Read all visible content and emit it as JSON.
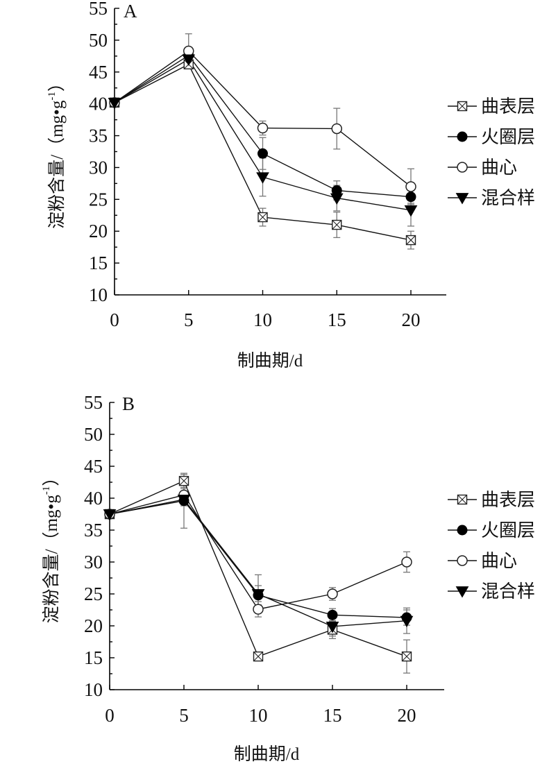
{
  "chart_data": [
    {
      "type": "line",
      "panel_label": "A",
      "xlabel": "制曲期/d",
      "ylabel_main": "淀粉含量/（mg",
      "ylabel_g": "g",
      "ylabel_exp": "-1",
      "ylabel_close": "）",
      "x": [
        0,
        5,
        10,
        15,
        20
      ],
      "xticks": [
        "0",
        "5",
        "10",
        "15",
        "20"
      ],
      "ylim": [
        10,
        55
      ],
      "yticks": [
        "10",
        "15",
        "20",
        "25",
        "30",
        "35",
        "40",
        "45",
        "50",
        "55"
      ],
      "legend_position": "right",
      "series": [
        {
          "name": "曲表层",
          "marker": "square-x",
          "values": [
            40.2,
            46.2,
            22.2,
            21.0,
            18.6
          ],
          "errors": [
            0.4,
            0.6,
            1.4,
            2.0,
            1.4
          ]
        },
        {
          "name": "火圈层",
          "marker": "filled-circle",
          "values": [
            40.2,
            47.6,
            32.2,
            26.4,
            25.4
          ],
          "errors": [
            0.3,
            0.8,
            2.5,
            1.5,
            1.0
          ]
        },
        {
          "name": "曲心",
          "marker": "open-circle",
          "values": [
            40.2,
            48.3,
            36.2,
            36.1,
            27.0
          ],
          "errors": [
            0.3,
            2.7,
            1.1,
            3.2,
            2.8
          ]
        },
        {
          "name": "混合样",
          "marker": "filled-triangle",
          "values": [
            40.2,
            47.0,
            28.5,
            25.2,
            23.3
          ],
          "errors": [
            0.3,
            1.0,
            3.0,
            2.0,
            2.5
          ]
        }
      ]
    },
    {
      "type": "line",
      "panel_label": "B",
      "xlabel": "制曲期/d",
      "ylabel_main": "淀粉含量/（mg",
      "ylabel_g": "g",
      "ylabel_exp": "-1",
      "ylabel_close": "）",
      "x": [
        0,
        5,
        10,
        15,
        20
      ],
      "xticks": [
        "0",
        "5",
        "10",
        "15",
        "20"
      ],
      "ylim": [
        10,
        55
      ],
      "yticks": [
        "10",
        "15",
        "20",
        "25",
        "30",
        "35",
        "40",
        "45",
        "50",
        "55"
      ],
      "legend_position": "right",
      "series": [
        {
          "name": "曲表层",
          "marker": "square-x",
          "values": [
            37.5,
            42.7,
            15.2,
            19.4,
            15.2
          ],
          "errors": [
            0.4,
            1.0,
            0.6,
            1.4,
            2.6
          ]
        },
        {
          "name": "火圈层",
          "marker": "filled-circle",
          "values": [
            37.5,
            39.6,
            24.8,
            21.7,
            21.3
          ],
          "errors": [
            0.4,
            4.3,
            1.5,
            1.0,
            1.2
          ]
        },
        {
          "name": "曲心",
          "marker": "open-circle",
          "values": [
            37.5,
            40.5,
            22.6,
            25.0,
            30.0
          ],
          "errors": [
            0.4,
            1.0,
            1.2,
            1.0,
            1.6
          ]
        },
        {
          "name": "混合样",
          "marker": "filled-triangle",
          "values": [
            37.5,
            39.8,
            25.0,
            19.9,
            20.8
          ],
          "errors": [
            0.4,
            1.0,
            3.0,
            1.5,
            2.0
          ]
        }
      ]
    }
  ]
}
